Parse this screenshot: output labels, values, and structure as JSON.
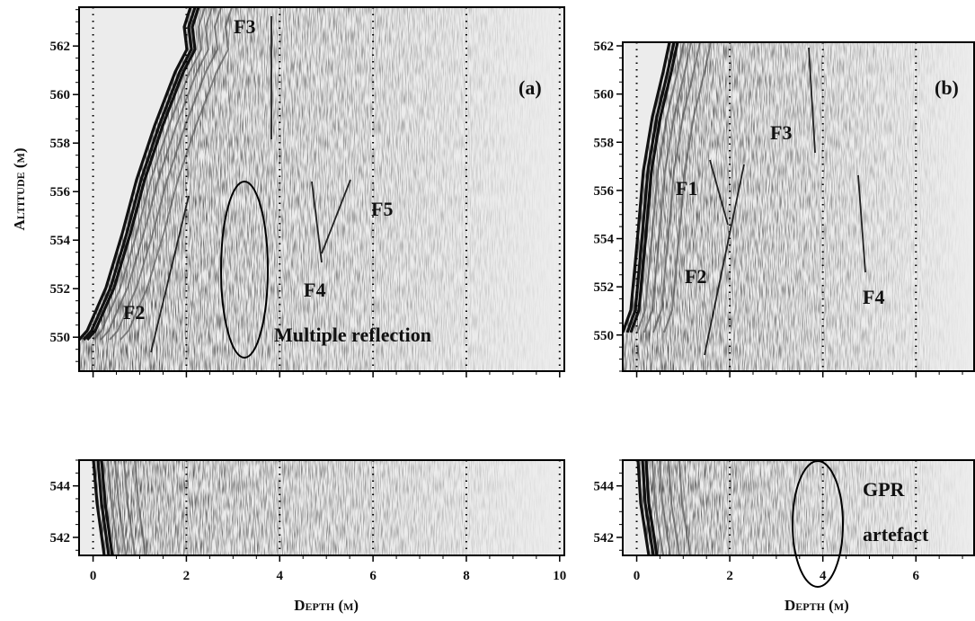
{
  "chart_data": [
    {
      "type": "radargram",
      "panel_label": "(a)",
      "y_label": "Altitude (m)",
      "xlim": [
        -0.3,
        10.1
      ],
      "xticks": [
        0,
        2,
        4,
        6,
        8,
        10
      ],
      "ylim": [
        548.6,
        563.6
      ],
      "yticks": [
        550,
        552,
        554,
        556,
        558,
        560,
        562
      ],
      "annotations": [
        "F3",
        "F5",
        "F4",
        "F2",
        "Multiple reflection"
      ],
      "grid": true
    },
    {
      "type": "radargram",
      "panel_label": "(b)",
      "xlim": [
        -0.3,
        7.25
      ],
      "xticks": [
        0,
        2,
        4,
        6
      ],
      "ylim": [
        548.5,
        562.15
      ],
      "yticks": [
        550,
        552,
        554,
        556,
        558,
        560,
        562
      ],
      "annotations": [
        "F3",
        "F1",
        "F2",
        "F4"
      ],
      "grid": true
    },
    {
      "type": "radargram",
      "x_label": "Depth (m)",
      "xlim": [
        -0.3,
        10.1
      ],
      "xticks": [
        0,
        2,
        4,
        6,
        8,
        10
      ],
      "ylim": [
        541.3,
        545
      ],
      "yticks": [
        542,
        544
      ],
      "grid": true
    },
    {
      "type": "radargram",
      "x_label": "Depth (m)",
      "xlim": [
        -0.3,
        7.25
      ],
      "xticks": [
        0,
        2,
        4,
        6
      ],
      "ylim": [
        541.3,
        545
      ],
      "yticks": [
        542,
        544
      ],
      "annotations": [
        "GPR",
        "artefact"
      ],
      "grid": true
    }
  ]
}
